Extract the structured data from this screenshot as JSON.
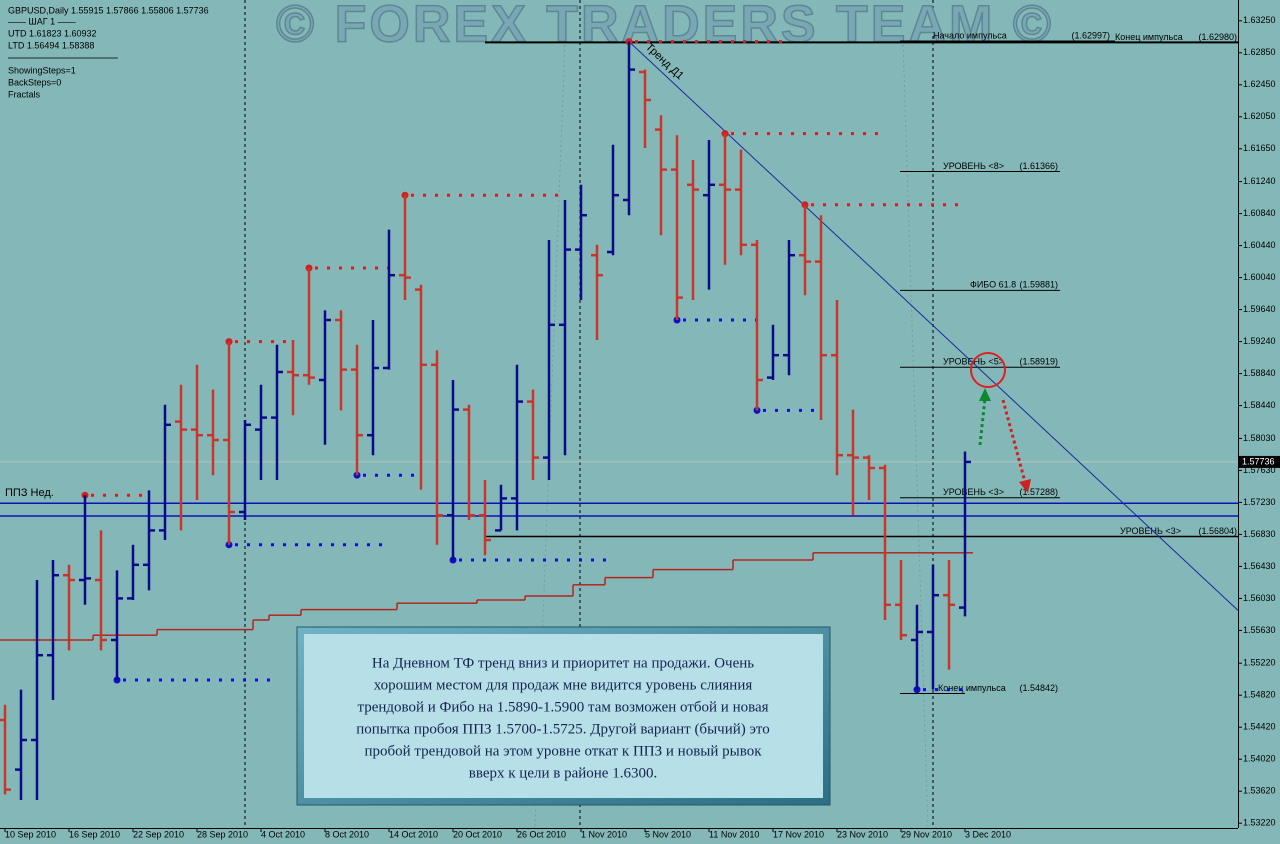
{
  "chart_data": {
    "type": "ohlc",
    "title": "GBPUSD,Daily  1.55915 1.57866 1.55806 1.57736",
    "info_lines": [
      "—— ШАГ 1 ——",
      "UTD 1.61823  1.60932",
      "LTD  1.56494  1.58388",
      "ShowingSteps=1",
      "BackSteps=0",
      "Fractals"
    ],
    "watermark": "© FOREX TRADERS TEAM ©",
    "categories": [
      "10 Sep 2010",
      null,
      null,
      null,
      "16 Sep 2010",
      null,
      null,
      null,
      "22 Sep 2010",
      null,
      null,
      null,
      "28 Sep 2010",
      null,
      null,
      null,
      "4 Oct 2010",
      null,
      null,
      null,
      "8 Oct 2010",
      null,
      null,
      null,
      "14 Oct 2010",
      null,
      null,
      null,
      "20 Oct 2010",
      null,
      null,
      null,
      "26 Oct 2010",
      null,
      null,
      null,
      "1 Nov 2010",
      null,
      null,
      null,
      "5 Nov 2010",
      null,
      null,
      null,
      "11 Nov 2010",
      null,
      null,
      null,
      "17 Nov 2010",
      null,
      null,
      null,
      "23 Nov 2010",
      null,
      null,
      null,
      "29 Nov 2010",
      null,
      null,
      null,
      "3 Dec 2010"
    ],
    "open": [
      1.5451,
      1.5389,
      1.5426,
      1.5532,
      1.5632,
      1.5626,
      1.5626,
      1.5551,
      1.5603,
      1.5645,
      1.5688,
      1.5824,
      1.5814,
      1.5807,
      1.5801,
      1.5711,
      1.5814,
      1.5829,
      1.5886,
      1.5882,
      1.5876,
      1.5951,
      1.5889,
      1.5807,
      1.5891,
      1.6007,
      1.5989,
      1.5895,
      1.5707,
      1.5839,
      1.5707,
      1.5688,
      1.5728,
      1.5849,
      1.5779,
      1.5945,
      1.6039,
      1.6032,
      1.6036,
      1.6101,
      1.6261,
      1.6189,
      1.6139,
      1.612,
      1.6107,
      1.612,
      1.6114,
      1.6045,
      1.5879,
      1.5907,
      1.6032,
      1.6024,
      1.5907,
      1.5782,
      1.5779,
      1.5766,
      1.5595,
      1.5551,
      1.5561,
      1.5607,
      1.55915
    ],
    "high": [
      1.547,
      1.5489,
      1.5626,
      1.5651,
      1.5645,
      1.5732,
      1.5688,
      1.5638,
      1.567,
      1.5738,
      1.5845,
      1.587,
      1.5895,
      1.5864,
      1.5924,
      1.5826,
      1.587,
      1.592,
      1.5926,
      1.6016,
      1.5963,
      1.5963,
      1.592,
      1.5951,
      1.6064,
      1.6107,
      1.5995,
      1.5913,
      1.5876,
      1.5845,
      1.5751,
      1.5745,
      1.5895,
      1.5864,
      1.6051,
      1.6101,
      1.612,
      1.6045,
      1.617,
      1.6299,
      1.6264,
      1.6207,
      1.6182,
      1.6151,
      1.6176,
      1.6184,
      1.6164,
      1.6051,
      1.5945,
      1.6051,
      1.6095,
      1.6082,
      1.5976,
      1.5839,
      1.5782,
      1.577,
      1.5651,
      1.5595,
      1.5645,
      1.5651,
      1.57866
    ],
    "low": [
      1.5358,
      1.5351,
      1.5351,
      1.5476,
      1.5538,
      1.5595,
      1.5538,
      1.5501,
      1.5601,
      1.5613,
      1.5676,
      1.5688,
      1.5726,
      1.5757,
      1.567,
      1.5701,
      1.5751,
      1.5751,
      1.5832,
      1.587,
      1.5795,
      1.5838,
      1.5757,
      1.5782,
      1.5889,
      1.5976,
      1.5739,
      1.567,
      1.5651,
      1.5701,
      1.5657,
      1.5688,
      1.5688,
      1.5751,
      1.5751,
      1.5782,
      1.5976,
      1.5926,
      1.6032,
      1.6082,
      1.6166,
      1.6057,
      1.5951,
      1.5976,
      1.5989,
      1.602,
      1.6032,
      1.5838,
      1.5876,
      1.5882,
      1.5982,
      1.5826,
      1.5757,
      1.5707,
      1.5726,
      1.5576,
      1.5551,
      1.5489,
      1.5489,
      1.5514,
      1.55806
    ],
    "close": [
      1.5364,
      1.5426,
      1.5532,
      1.5632,
      1.5626,
      1.5628,
      1.5551,
      1.5603,
      1.5645,
      1.5688,
      1.582,
      1.5814,
      1.5807,
      1.5801,
      1.5711,
      1.582,
      1.5829,
      1.5886,
      1.5882,
      1.5879,
      1.5951,
      1.5889,
      1.5807,
      1.5891,
      1.6007,
      1.6004,
      1.5895,
      1.5707,
      1.5839,
      1.5707,
      1.5676,
      1.5728,
      1.5849,
      1.5779,
      1.5945,
      1.6039,
      1.6082,
      1.6007,
      1.6107,
      1.6264,
      1.6226,
      1.6139,
      1.5979,
      1.6114,
      1.612,
      1.6114,
      1.6045,
      1.5876,
      1.5907,
      1.6032,
      1.6024,
      1.5907,
      1.5782,
      1.5779,
      1.5766,
      1.5595,
      1.5557,
      1.5561,
      1.5607,
      1.5595,
      1.57736
    ],
    "up_color": "#0b0b8a",
    "down_color": "#c8362a",
    "fractal_up_bars": [
      5,
      14,
      19,
      25,
      39,
      45,
      50
    ],
    "fractal_down_bars": [
      7,
      14,
      22,
      28,
      42,
      47,
      57
    ],
    "fractal_up_color": "#d02020",
    "fractal_down_color": "#1010c8",
    "stop_line": {
      "color": "#b3261e",
      "values": [
        1.5551,
        1.5551,
        1.5551,
        1.5551,
        1.5551,
        1.5551,
        1.5557,
        1.5557,
        1.5557,
        1.5557,
        1.5564,
        1.5564,
        1.5564,
        1.5564,
        1.5564,
        1.5564,
        1.5576,
        1.5582,
        1.5582,
        1.5589,
        1.5589,
        1.5589,
        1.5589,
        1.5589,
        1.5589,
        1.5597,
        1.5597,
        1.5597,
        1.5597,
        1.5597,
        1.5601,
        1.5601,
        1.5601,
        1.5606,
        1.5606,
        1.5606,
        1.562,
        1.562,
        1.5629,
        1.5629,
        1.5629,
        1.5639,
        1.5639,
        1.5639,
        1.5639,
        1.5639,
        1.5651,
        1.5651,
        1.5651,
        1.5651,
        1.5651,
        1.566,
        1.566,
        1.566,
        1.566,
        1.566,
        1.566,
        1.566,
        1.566,
        1.566,
        1.566
      ]
    },
    "trend_line": {
      "label": "Тренд Д1",
      "color": "#1a2a9a",
      "values": [
        1.6299,
        1.5588
      ]
    },
    "weekly_zone": {
      "label": "ППЗ Нед.",
      "color": "#1010b8",
      "values": [
        1.5722,
        1.5706
      ]
    },
    "levels": [
      {
        "name": "Начало импульса",
        "value": 1.62997,
        "label": "(1.62997)"
      },
      {
        "name": "Конец импульса",
        "value": 1.6298,
        "label": "(1.62980)"
      },
      {
        "name": "УРОВЕНЬ <8>",
        "value": 1.61366,
        "label": "(1.61366)"
      },
      {
        "name": "ФИБО 61.8",
        "value": 1.59881,
        "label": "(1.59881)"
      },
      {
        "name": "УРОВЕНЬ <5>",
        "value": 1.58919,
        "label": "(1.58919)"
      },
      {
        "name": "УРОВЕНЬ <3>",
        "value": 1.57288,
        "label": "(1.57288)"
      },
      {
        "name": "УРОВЕНЬ <3>",
        "value": 1.56804,
        "label": "(1.56804)"
      },
      {
        "name": "Конец импульса",
        "value": 1.54842,
        "label": "(1.54842)"
      }
    ],
    "price_line": {
      "value": 1.57736,
      "label": "1.57736"
    },
    "ylim": [
      1.5316,
      1.6351
    ],
    "yticks": [
      {
        "value": 1.6325,
        "label": "1.63250"
      },
      {
        "value": 1.6285,
        "label": "1.62850"
      },
      {
        "value": 1.6245,
        "label": "1.62450"
      },
      {
        "value": 1.6205,
        "label": "1.62050"
      },
      {
        "value": 1.6165,
        "label": "1.61650"
      },
      {
        "value": 1.6124,
        "label": "1.61240"
      },
      {
        "value": 1.6084,
        "label": "1.60840"
      },
      {
        "value": 1.6044,
        "label": "1.60440"
      },
      {
        "value": 1.6004,
        "label": "1.60040"
      },
      {
        "value": 1.5964,
        "label": "1.59640"
      },
      {
        "value": 1.5924,
        "label": "1.59240"
      },
      {
        "value": 1.5884,
        "label": "1.58840"
      },
      {
        "value": 1.5844,
        "label": "1.58440"
      },
      {
        "value": 1.5803,
        "label": "1.58030"
      },
      {
        "value": 1.5763,
        "label": "1.57630"
      },
      {
        "value": 1.5723,
        "label": "1.57230"
      },
      {
        "value": 1.5683,
        "label": "1.56830"
      },
      {
        "value": 1.5643,
        "label": "1.56430"
      },
      {
        "value": 1.5603,
        "label": "1.56030"
      },
      {
        "value": 1.5563,
        "label": "1.55630"
      },
      {
        "value": 1.5522,
        "label": "1.55220"
      },
      {
        "value": 1.5482,
        "label": "1.54820"
      },
      {
        "value": 1.5442,
        "label": "1.54420"
      },
      {
        "value": 1.5402,
        "label": "1.54020"
      },
      {
        "value": 1.5362,
        "label": "1.53620"
      },
      {
        "value": 1.5322,
        "label": "1.53220"
      }
    ],
    "annotation": [
      "На Дневном ТФ тренд вниз и приоритет на продажи. Очень",
      "хорошим местом для продаж мне видится уровень слияния",
      "трендовой и Фибо на 1.5890-1.5900 там возможен отбой и новая",
      "попытка пробоя ППЗ 1.5700-1.5725. Другой вариант (бычий) это",
      "пробой трендовой на этом уровне откат к ППЗ и новый рывок",
      "вверх к цели в районе 1.6300."
    ]
  }
}
